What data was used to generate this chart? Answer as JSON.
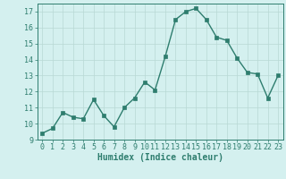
{
  "x": [
    0,
    1,
    2,
    3,
    4,
    5,
    6,
    7,
    8,
    9,
    10,
    11,
    12,
    13,
    14,
    15,
    16,
    17,
    18,
    19,
    20,
    21,
    22,
    23
  ],
  "y": [
    9.4,
    9.7,
    10.7,
    10.4,
    10.3,
    11.5,
    10.5,
    9.8,
    11.0,
    11.6,
    12.6,
    12.1,
    14.2,
    16.5,
    17.0,
    17.2,
    16.5,
    15.4,
    15.2,
    14.1,
    13.2,
    13.1,
    11.6,
    13.0
  ],
  "xlim": [
    -0.5,
    23.5
  ],
  "ylim": [
    9,
    17.5
  ],
  "yticks": [
    9,
    10,
    11,
    12,
    13,
    14,
    15,
    16,
    17
  ],
  "xticks": [
    0,
    1,
    2,
    3,
    4,
    5,
    6,
    7,
    8,
    9,
    10,
    11,
    12,
    13,
    14,
    15,
    16,
    17,
    18,
    19,
    20,
    21,
    22,
    23
  ],
  "xlabel": "Humidex (Indice chaleur)",
  "line_color": "#2e7d6e",
  "bg_color": "#d4f0ef",
  "grid_color_major": "#b8d8d4",
  "marker": "s",
  "marker_size": 2.5,
  "line_width": 1.0,
  "xlabel_fontsize": 7,
  "tick_fontsize": 6
}
